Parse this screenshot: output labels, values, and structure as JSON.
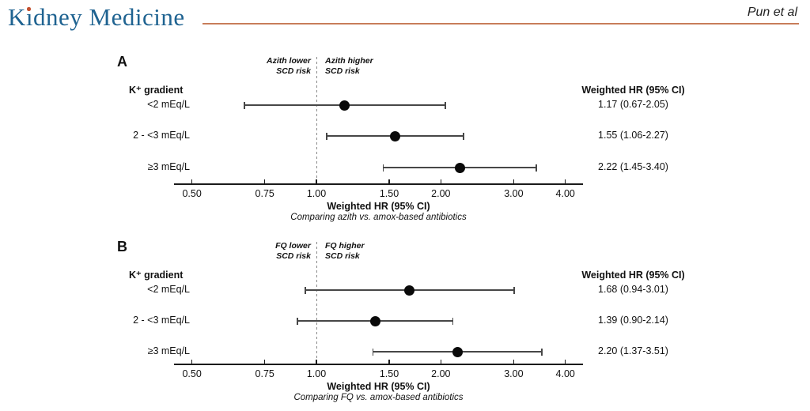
{
  "header": {
    "journal_prefix": "K",
    "journal_dotless_i": "ı",
    "journal_suffix": "dney Medicine",
    "authors": "Pun et al",
    "logo_color": "#1f6391",
    "logo_dot_color": "#c4502e",
    "rule_color": "#c87d5a"
  },
  "chart_data": [
    {
      "type": "forest",
      "panel_label": "A",
      "risk_left": [
        "Azith lower",
        "SCD risk"
      ],
      "risk_right": [
        "Azith higher",
        "SCD risk"
      ],
      "group_header": "K⁺ gradient",
      "value_col_header": "Weighted HR (95% CI)",
      "rows": [
        {
          "label": "<2 mEq/L",
          "hr": 1.17,
          "lo": 0.67,
          "hi": 2.05,
          "text": "1.17 (0.67-2.05)"
        },
        {
          "label": "2 - <3 mEq/L",
          "hr": 1.55,
          "lo": 1.06,
          "hi": 2.27,
          "text": "1.55 (1.06-2.27)"
        },
        {
          "label": "≥3 mEq/L",
          "hr": 2.22,
          "lo": 1.45,
          "hi": 3.4,
          "text": "2.22 (1.45-3.40)"
        }
      ],
      "x_scale": "log",
      "x_range": [
        0.45,
        4.41
      ],
      "ref_line": 1.0,
      "x_ticks": [
        0.5,
        0.75,
        1.0,
        1.5,
        2.0,
        3.0,
        4.0
      ],
      "x_tick_labels": [
        "0.50",
        "0.75",
        "1.00",
        "1.50",
        "2.00",
        "3.00",
        "4.00"
      ],
      "xlabel": "Weighted HR (95% CI)",
      "x_sublabel": "Comparing azith vs. amox-based antibiotics"
    },
    {
      "type": "forest",
      "panel_label": "B",
      "risk_left": [
        "FQ lower",
        "SCD risk"
      ],
      "risk_right": [
        "FQ higher",
        "SCD risk"
      ],
      "group_header": "K⁺ gradient",
      "value_col_header": "Weighted HR (95% CI)",
      "rows": [
        {
          "label": "<2 mEq/L",
          "hr": 1.68,
          "lo": 0.94,
          "hi": 3.01,
          "text": "1.68 (0.94-3.01)"
        },
        {
          "label": "2 - <3 mEq/L",
          "hr": 1.39,
          "lo": 0.9,
          "hi": 2.14,
          "text": "1.39 (0.90-2.14)"
        },
        {
          "label": "≥3 mEq/L",
          "hr": 2.2,
          "lo": 1.37,
          "hi": 3.51,
          "text": "2.20 (1.37-3.51)"
        }
      ],
      "x_scale": "log",
      "x_range": [
        0.45,
        4.41
      ],
      "ref_line": 1.0,
      "x_ticks": [
        0.5,
        0.75,
        1.0,
        1.5,
        2.0,
        3.0,
        4.0
      ],
      "x_tick_labels": [
        "0.50",
        "0.75",
        "1.00",
        "1.50",
        "2.00",
        "3.00",
        "4.00"
      ],
      "xlabel": "Weighted HR (95% CI)",
      "x_sublabel": "Comparing FQ vs. amox-based antibiotics"
    }
  ]
}
